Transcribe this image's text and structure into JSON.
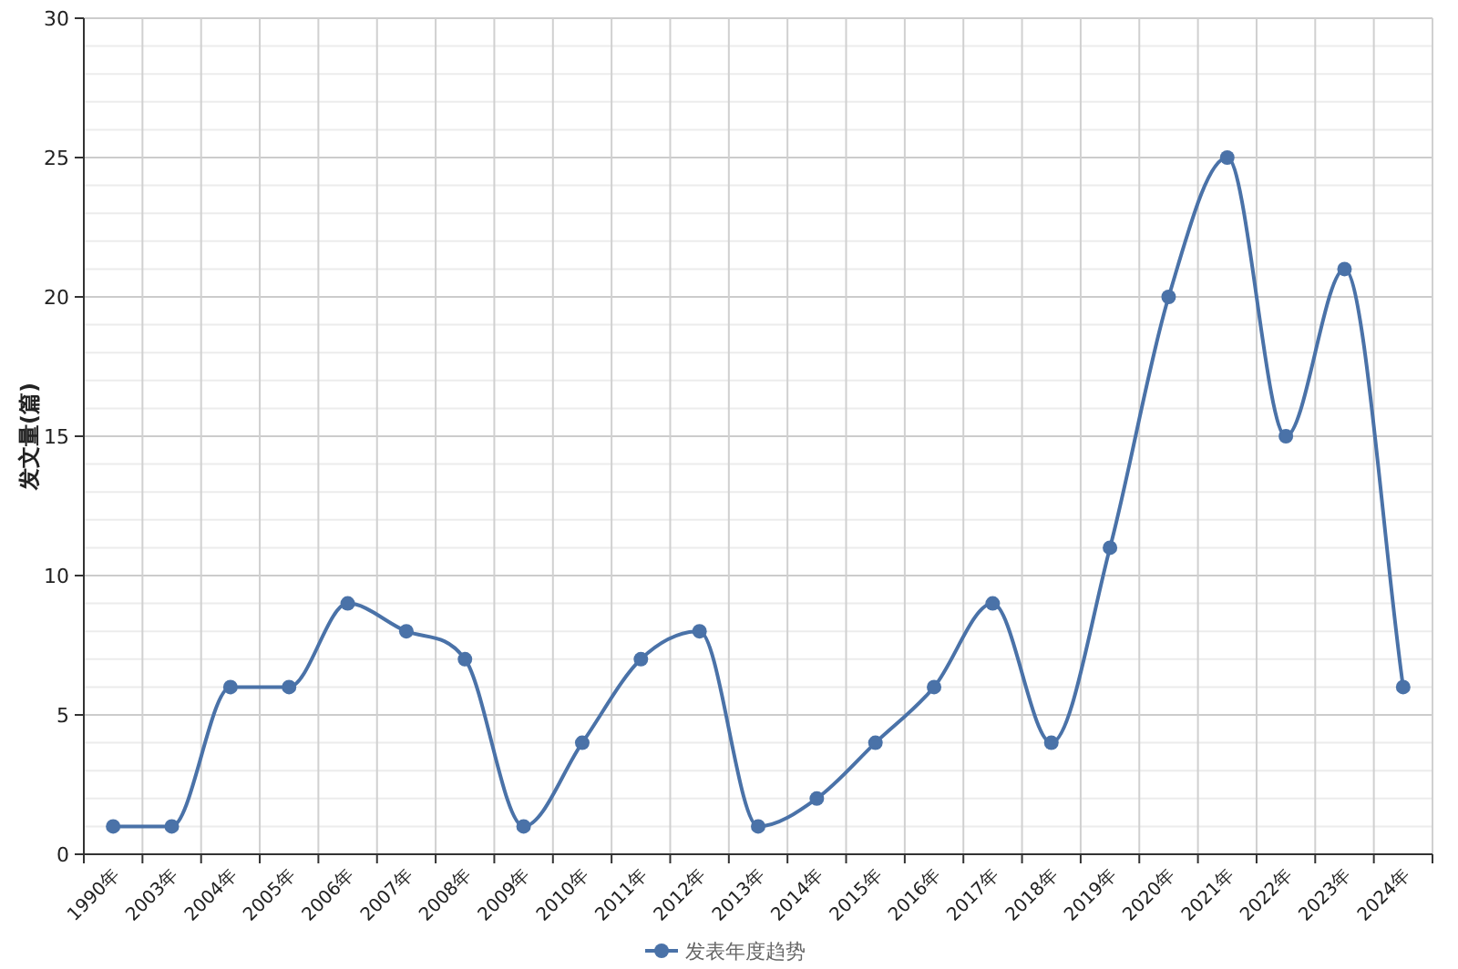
{
  "chart_data": {
    "type": "line",
    "ylabel": "发文量(篇)",
    "categories": [
      "1990年",
      "2003年",
      "2004年",
      "2005年",
      "2006年",
      "2007年",
      "2008年",
      "2009年",
      "2010年",
      "2011年",
      "2012年",
      "2013年",
      "2014年",
      "2015年",
      "2016年",
      "2017年",
      "2018年",
      "2019年",
      "2020年",
      "2021年",
      "2022年",
      "2023年",
      "2024年"
    ],
    "series": [
      {
        "name": "发表年度趋势",
        "color": "#4a72a8",
        "values": [
          1,
          1,
          6,
          6,
          9,
          8,
          7,
          1,
          4,
          7,
          8,
          1,
          2,
          4,
          6,
          9,
          4,
          11,
          20,
          25,
          15,
          21,
          6
        ]
      }
    ],
    "ylim": [
      0,
      30
    ],
    "yticks": [
      0,
      5,
      10,
      15,
      20,
      25,
      30
    ],
    "grid": true,
    "legend": "bottom",
    "marker": "circle",
    "line_style": "solid"
  }
}
